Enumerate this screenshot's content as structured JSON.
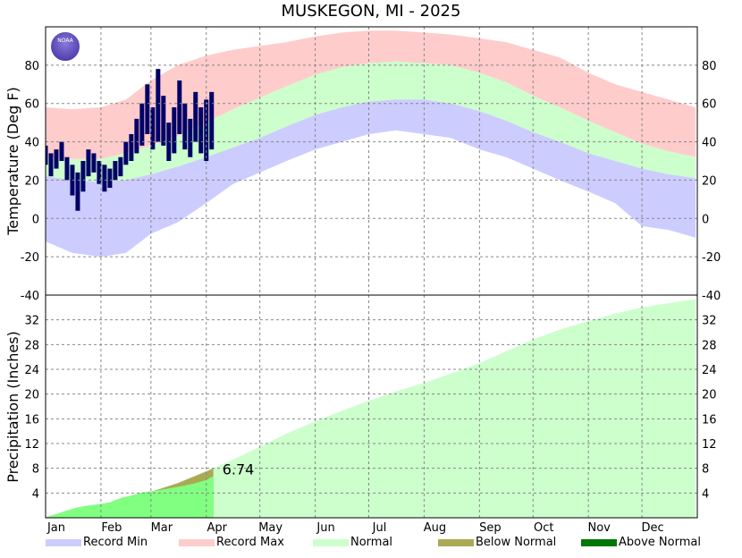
{
  "logo_text": "NOAA",
  "legend": [
    {
      "name": "Record Min",
      "color": "#ccccff"
    },
    {
      "name": "Record Max",
      "color": "#ffcccc"
    },
    {
      "name": "Normal",
      "color": "#ccffcc"
    },
    {
      "name": "Below Normal",
      "color": "#aaaa55"
    },
    {
      "name": "Above Normal",
      "color": "#007700"
    }
  ],
  "chart_data": [
    {
      "type": "temperature_band",
      "title": "MUSKEGON, MI - 2025",
      "ylabel": "Temperature (Deg F)",
      "x": [
        1,
        16,
        32,
        46,
        60,
        75,
        91,
        106,
        121,
        136,
        152,
        167,
        182,
        197,
        213,
        228,
        244,
        259,
        274,
        289,
        305,
        320,
        335,
        350,
        365
      ],
      "record_max": [
        58,
        57,
        58,
        62,
        72,
        80,
        85,
        88,
        90,
        92,
        95,
        97,
        98,
        98,
        97,
        96,
        94,
        92,
        88,
        84,
        76,
        70,
        66,
        62,
        58
      ],
      "normal_high": [
        32,
        31,
        31,
        34,
        38,
        43,
        50,
        57,
        63,
        69,
        75,
        79,
        81,
        82,
        81,
        80,
        76,
        71,
        64,
        58,
        51,
        45,
        39,
        35,
        32
      ],
      "normal_low": [
        22,
        20,
        19,
        20,
        23,
        27,
        32,
        37,
        42,
        48,
        54,
        58,
        61,
        62,
        62,
        60,
        56,
        51,
        45,
        40,
        34,
        30,
        26,
        23,
        21
      ],
      "record_min": [
        -12,
        -18,
        -20,
        -18,
        -8,
        -2,
        8,
        18,
        24,
        30,
        36,
        40,
        44,
        46,
        44,
        42,
        36,
        32,
        26,
        20,
        14,
        8,
        -4,
        -6,
        -10
      ],
      "observed": {
        "color": "#000066",
        "x": [
          1,
          4,
          7,
          10,
          13,
          16,
          19,
          22,
          25,
          28,
          31,
          34,
          37,
          40,
          43,
          46,
          49,
          52,
          55,
          58,
          61,
          64,
          67,
          70,
          73,
          76,
          79,
          82,
          85,
          88,
          91,
          94
        ],
        "high": [
          38,
          34,
          36,
          40,
          32,
          28,
          24,
          30,
          36,
          34,
          30,
          28,
          26,
          30,
          32,
          40,
          44,
          52,
          60,
          70,
          58,
          78,
          64,
          50,
          58,
          72,
          60,
          52,
          66,
          58,
          62,
          66
        ],
        "low": [
          28,
          22,
          26,
          30,
          20,
          12,
          4,
          14,
          22,
          24,
          18,
          14,
          16,
          20,
          22,
          28,
          30,
          34,
          38,
          44,
          36,
          40,
          38,
          30,
          34,
          44,
          36,
          32,
          40,
          34,
          30,
          36
        ]
      },
      "ylim": [
        -40,
        100
      ],
      "yticks": [
        -40,
        -20,
        0,
        20,
        40,
        60,
        80
      ],
      "grid": true
    },
    {
      "type": "cumulative_precip",
      "ylabel": "Precipitation (Inches)",
      "x": [
        1,
        16,
        32,
        46,
        60,
        75,
        91,
        106,
        121,
        136,
        152,
        167,
        182,
        197,
        213,
        228,
        244,
        259,
        274,
        289,
        305,
        320,
        335,
        350,
        365
      ],
      "normal": [
        0,
        0.9,
        1.8,
        2.9,
        4.2,
        5.6,
        7.5,
        9.4,
        11.5,
        13.6,
        15.6,
        17.3,
        18.9,
        20.4,
        21.8,
        23.3,
        25,
        26.9,
        28.8,
        30.4,
        31.8,
        33,
        34,
        34.7,
        35.3
      ],
      "observed": {
        "color": "#80ff80",
        "x": [
          1,
          7,
          13,
          19,
          25,
          31,
          37,
          43,
          49,
          55,
          61,
          67,
          73,
          79,
          85,
          91,
          95
        ],
        "values": [
          0.1,
          0.6,
          1.2,
          1.7,
          2.0,
          2.2,
          2.5,
          3.2,
          3.6,
          4.1,
          4.3,
          4.6,
          4.9,
          5.2,
          5.6,
          6.1,
          6.74
        ]
      },
      "ylim": [
        0,
        36
      ],
      "yticks": [
        4,
        8,
        12,
        16,
        20,
        24,
        28,
        32
      ],
      "grid": true,
      "xlim": [
        1,
        366
      ],
      "xticks": [
        {
          "value": 1,
          "label": "Jan"
        },
        {
          "value": 32,
          "label": "Feb"
        },
        {
          "value": 60,
          "label": "Mar"
        },
        {
          "value": 91,
          "label": "Apr"
        },
        {
          "value": 121,
          "label": "May"
        },
        {
          "value": 152,
          "label": "Jun"
        },
        {
          "value": 182,
          "label": "Jul"
        },
        {
          "value": 213,
          "label": "Aug"
        },
        {
          "value": 244,
          "label": "Sep"
        },
        {
          "value": 274,
          "label": "Oct"
        },
        {
          "value": 305,
          "label": "Nov"
        },
        {
          "value": 335,
          "label": "Dec"
        }
      ]
    }
  ]
}
